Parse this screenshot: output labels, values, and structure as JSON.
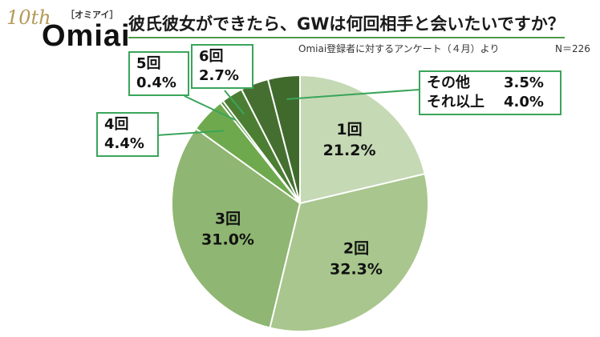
{
  "logo": {
    "anniversary": "10th",
    "kana": "［オミアイ］",
    "wordmark": "Omiai"
  },
  "title": "彼氏彼女ができたら、GWは何回相手と会いたいですか？",
  "subtitle": "Omiai登録者に対するアンケート（４月）より",
  "n_label": "N＝226",
  "colors": {
    "slice_1": "#c5d9b5",
    "slice_2": "#a8c68d",
    "slice_3": "#8fb672",
    "slice_4": "#6fa94e",
    "slice_5": "#4e8a36",
    "slice_6": "#4b7e32",
    "slice_other": "#456f31",
    "slice_more": "#3f6a2c",
    "callout_border": "#3aa55a"
  },
  "chart_data": {
    "type": "pie",
    "slices": [
      {
        "label": "1回",
        "value": 21.2,
        "value_label": "21.2%"
      },
      {
        "label": "2回",
        "value": 32.3,
        "value_label": "32.3%"
      },
      {
        "label": "3回",
        "value": 31.0,
        "value_label": "31.0%"
      },
      {
        "label": "4回",
        "value": 4.4,
        "value_label": "4.4%"
      },
      {
        "label": "5回",
        "value": 0.4,
        "value_label": "0.4%"
      },
      {
        "label": "6回",
        "value": 2.7,
        "value_label": "2.7%"
      },
      {
        "label": "その他",
        "value": 3.5,
        "value_label": "3.5%"
      },
      {
        "label": "それ以上",
        "value": 4.0,
        "value_label": "4.0%"
      }
    ]
  }
}
